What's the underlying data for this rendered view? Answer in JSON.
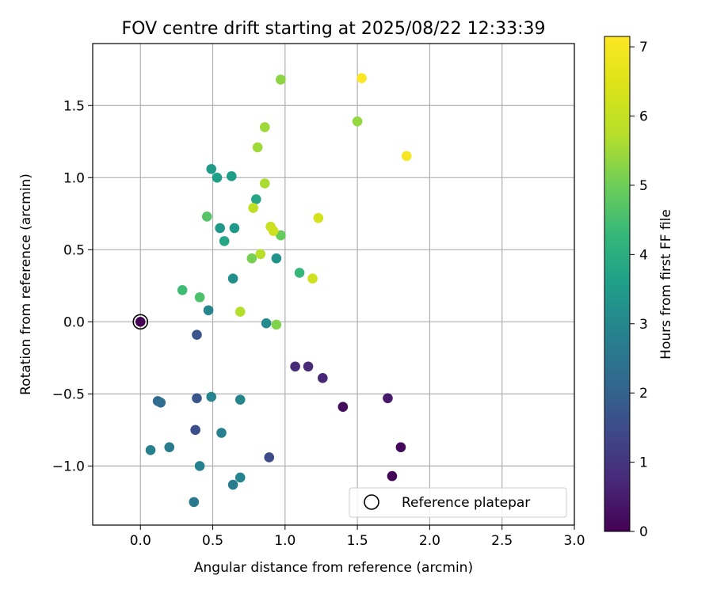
{
  "chart_data": {
    "type": "scatter",
    "title": "FOV centre drift starting at 2025/08/22 12:33:39",
    "xlabel": "Angular distance from reference (arcmin)",
    "ylabel": "Rotation from reference (arcmin)",
    "xlim": [
      -0.33,
      3.0
    ],
    "ylim": [
      -1.41,
      1.93
    ],
    "xticks": [
      0.0,
      0.5,
      1.0,
      1.5,
      2.0,
      2.5,
      3.0
    ],
    "xtick_labels": [
      "0.0",
      "0.5",
      "1.0",
      "1.5",
      "2.0",
      "2.5",
      "3.0"
    ],
    "yticks": [
      -1.0,
      -0.5,
      0.0,
      0.5,
      1.0,
      1.5
    ],
    "ytick_labels": [
      "−1.0",
      "−0.5",
      "0.0",
      "0.5",
      "1.0",
      "1.5"
    ],
    "grid": true,
    "legend": {
      "placement": "lower-right",
      "entries": [
        "Reference platepar"
      ]
    },
    "colorbar": {
      "label": "Hours from first FF file",
      "colormap": "viridis",
      "range": [
        0,
        7.15
      ],
      "ticks": [
        0,
        1,
        2,
        3,
        4,
        5,
        6,
        7
      ],
      "tick_labels": [
        "0",
        "1",
        "2",
        "3",
        "4",
        "5",
        "6",
        "7"
      ]
    },
    "reference_point": {
      "x": 0.0,
      "y": 0.0,
      "hours": 0.0,
      "name": "Reference platepar"
    },
    "points": [
      {
        "x": 0.0,
        "y": 0.0,
        "hours": 0.0
      },
      {
        "x": 1.74,
        "y": -1.07,
        "hours": 0.05
      },
      {
        "x": 1.8,
        "y": -0.87,
        "hours": 0.15
      },
      {
        "x": 1.4,
        "y": -0.59,
        "hours": 0.2
      },
      {
        "x": 1.71,
        "y": -0.53,
        "hours": 0.45
      },
      {
        "x": 1.26,
        "y": -0.39,
        "hours": 0.7
      },
      {
        "x": 1.16,
        "y": -0.31,
        "hours": 0.75
      },
      {
        "x": 1.07,
        "y": -0.31,
        "hours": 0.8
      },
      {
        "x": 0.89,
        "y": -0.94,
        "hours": 1.5
      },
      {
        "x": 0.38,
        "y": -0.75,
        "hours": 1.6
      },
      {
        "x": 0.39,
        "y": -0.53,
        "hours": 1.7
      },
      {
        "x": 0.39,
        "y": -0.09,
        "hours": 1.7
      },
      {
        "x": 0.12,
        "y": -0.55,
        "hours": 2.2
      },
      {
        "x": 0.14,
        "y": -0.56,
        "hours": 2.3
      },
      {
        "x": 0.37,
        "y": -1.25,
        "hours": 2.6
      },
      {
        "x": 0.2,
        "y": -0.87,
        "hours": 2.7
      },
      {
        "x": 0.07,
        "y": -0.89,
        "hours": 2.8
      },
      {
        "x": 0.41,
        "y": -1.0,
        "hours": 2.8
      },
      {
        "x": 0.56,
        "y": -0.77,
        "hours": 2.8
      },
      {
        "x": 0.64,
        "y": -1.13,
        "hours": 2.7
      },
      {
        "x": 0.69,
        "y": -1.08,
        "hours": 2.9
      },
      {
        "x": 0.49,
        "y": -0.52,
        "hours": 2.9
      },
      {
        "x": 0.69,
        "y": -0.54,
        "hours": 3.0
      },
      {
        "x": 0.47,
        "y": 0.08,
        "hours": 3.0
      },
      {
        "x": 0.87,
        "y": -0.01,
        "hours": 3.1
      },
      {
        "x": 0.64,
        "y": 0.3,
        "hours": 3.2
      },
      {
        "x": 0.94,
        "y": 0.44,
        "hours": 3.3
      },
      {
        "x": 0.55,
        "y": 0.65,
        "hours": 3.4
      },
      {
        "x": 0.65,
        "y": 0.65,
        "hours": 3.5
      },
      {
        "x": 0.49,
        "y": 1.06,
        "hours": 3.5
      },
      {
        "x": 0.53,
        "y": 1.0,
        "hours": 3.6
      },
      {
        "x": 0.63,
        "y": 1.01,
        "hours": 3.6
      },
      {
        "x": 0.8,
        "y": 0.85,
        "hours": 3.8
      },
      {
        "x": 0.58,
        "y": 0.56,
        "hours": 3.8
      },
      {
        "x": 1.1,
        "y": 0.34,
        "hours": 4.3
      },
      {
        "x": 0.29,
        "y": 0.22,
        "hours": 4.4
      },
      {
        "x": 0.41,
        "y": 0.17,
        "hours": 4.6
      },
      {
        "x": 0.46,
        "y": 0.73,
        "hours": 4.7
      },
      {
        "x": 0.97,
        "y": 0.6,
        "hours": 4.9
      },
      {
        "x": 0.77,
        "y": 0.44,
        "hours": 5.1
      },
      {
        "x": 0.94,
        "y": -0.02,
        "hours": 5.2
      },
      {
        "x": 0.97,
        "y": 1.68,
        "hours": 5.3
      },
      {
        "x": 1.5,
        "y": 1.39,
        "hours": 5.4
      },
      {
        "x": 0.81,
        "y": 1.21,
        "hours": 5.5
      },
      {
        "x": 0.86,
        "y": 1.35,
        "hours": 5.5
      },
      {
        "x": 0.86,
        "y": 0.96,
        "hours": 5.6
      },
      {
        "x": 0.69,
        "y": 0.07,
        "hours": 5.7
      },
      {
        "x": 0.83,
        "y": 0.47,
        "hours": 5.8
      },
      {
        "x": 0.78,
        "y": 0.79,
        "hours": 5.9
      },
      {
        "x": 0.9,
        "y": 0.66,
        "hours": 6.1
      },
      {
        "x": 0.92,
        "y": 0.63,
        "hours": 6.2
      },
      {
        "x": 1.19,
        "y": 0.3,
        "hours": 6.2
      },
      {
        "x": 1.23,
        "y": 0.72,
        "hours": 6.3
      },
      {
        "x": 1.84,
        "y": 1.15,
        "hours": 7.0
      },
      {
        "x": 1.53,
        "y": 1.69,
        "hours": 7.1
      }
    ]
  }
}
